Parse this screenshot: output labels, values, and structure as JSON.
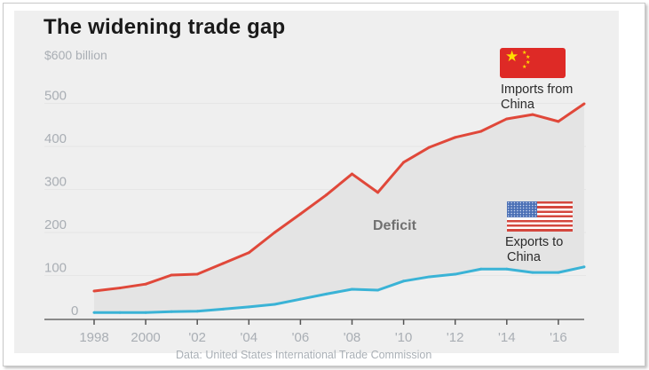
{
  "chart_data": {
    "type": "area",
    "title": "The widening trade gap",
    "ylabel": "$600 billion",
    "y_unit_label": "$600 billion",
    "xlabel": "",
    "ylim": [
      0,
      600
    ],
    "xlim": [
      1998,
      2017
    ],
    "grid": true,
    "y_ticks": [
      0,
      100,
      200,
      300,
      400,
      500,
      600
    ],
    "y_tick_labels": [
      "0",
      "100",
      "200",
      "300",
      "400",
      "500",
      "$600 billion"
    ],
    "x_ticks": [
      1998,
      2000,
      2002,
      2004,
      2006,
      2008,
      2010,
      2012,
      2014,
      2016
    ],
    "x_tick_labels": [
      "1998",
      "2000",
      "'02",
      "'04",
      "'06",
      "'08",
      "'10",
      "'12",
      "'14",
      "'16"
    ],
    "x": [
      1998,
      1999,
      2000,
      2001,
      2002,
      2003,
      2004,
      2005,
      2006,
      2007,
      2008,
      2009,
      2010,
      2011,
      2012,
      2013,
      2014,
      2015,
      2016,
      2017
    ],
    "series": [
      {
        "name": "Imports from China",
        "color": "#e0483a",
        "values": [
          64,
          71,
          80,
          101,
          103,
          128,
          153,
          200,
          243,
          287,
          336,
          293,
          363,
          398,
          421,
          435,
          464,
          474,
          458,
          499
        ]
      },
      {
        "name": "Exports to China",
        "color": "#3ab3d6",
        "values": [
          14,
          14,
          14,
          16,
          17,
          22,
          27,
          33,
          45,
          57,
          68,
          66,
          87,
          97,
          103,
          115,
          115,
          107,
          107,
          120
        ]
      }
    ],
    "shaded_region": {
      "label": "Deficit",
      "between": [
        "Imports from China",
        "Exports to China"
      ],
      "color": "#e4e4e4"
    },
    "annotations": [
      {
        "text": "Deficit",
        "anchor": "center-of-shaded-area"
      },
      {
        "text": "Imports from China",
        "icon": "china-flag-icon",
        "anchor": "right-end-of-imports"
      },
      {
        "text": "Exports to China",
        "icon": "us-flag-icon",
        "anchor": "right-end-of-exports"
      }
    ],
    "legend": "inline-labels-right",
    "source": "Data: United States International Trade Commission"
  },
  "labels": {
    "title": "The widening trade gap",
    "unit": "$600 billion",
    "imports_line1": "Imports from",
    "imports_line2": "China",
    "exports_line1": "Exports to",
    "exports_line2": "China",
    "deficit": "Deficit",
    "source": "Data: United States International Trade Commission"
  },
  "colors": {
    "background": "#efefef",
    "imports": "#e0483a",
    "exports": "#3ab3d6",
    "deficit_fill": "#e4e4e4",
    "axis": "#8a8a8a",
    "tick_text": "#a9aeb4"
  }
}
